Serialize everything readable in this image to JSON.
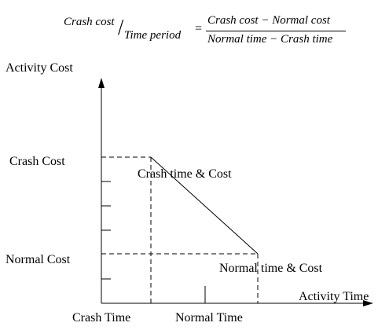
{
  "formula": {
    "lhs_numerator": "Crash cost",
    "lhs_denominator": "Time period",
    "equals": "=",
    "rhs_numerator": "Crash cost − Normal cost",
    "rhs_denominator": "Normal time − Crash time"
  },
  "axes": {
    "y_label": "Activity Cost",
    "x_label": "Activity Time"
  },
  "y_ticks": {
    "crash_cost": "Crash Cost",
    "normal_cost": "Normal Cost"
  },
  "x_ticks": {
    "crash_time": "Crash Time",
    "normal_time": "Normal Time"
  },
  "annotations": {
    "crash_point": "Crash time & Cost",
    "normal_point": "Normal time  & Cost"
  }
}
